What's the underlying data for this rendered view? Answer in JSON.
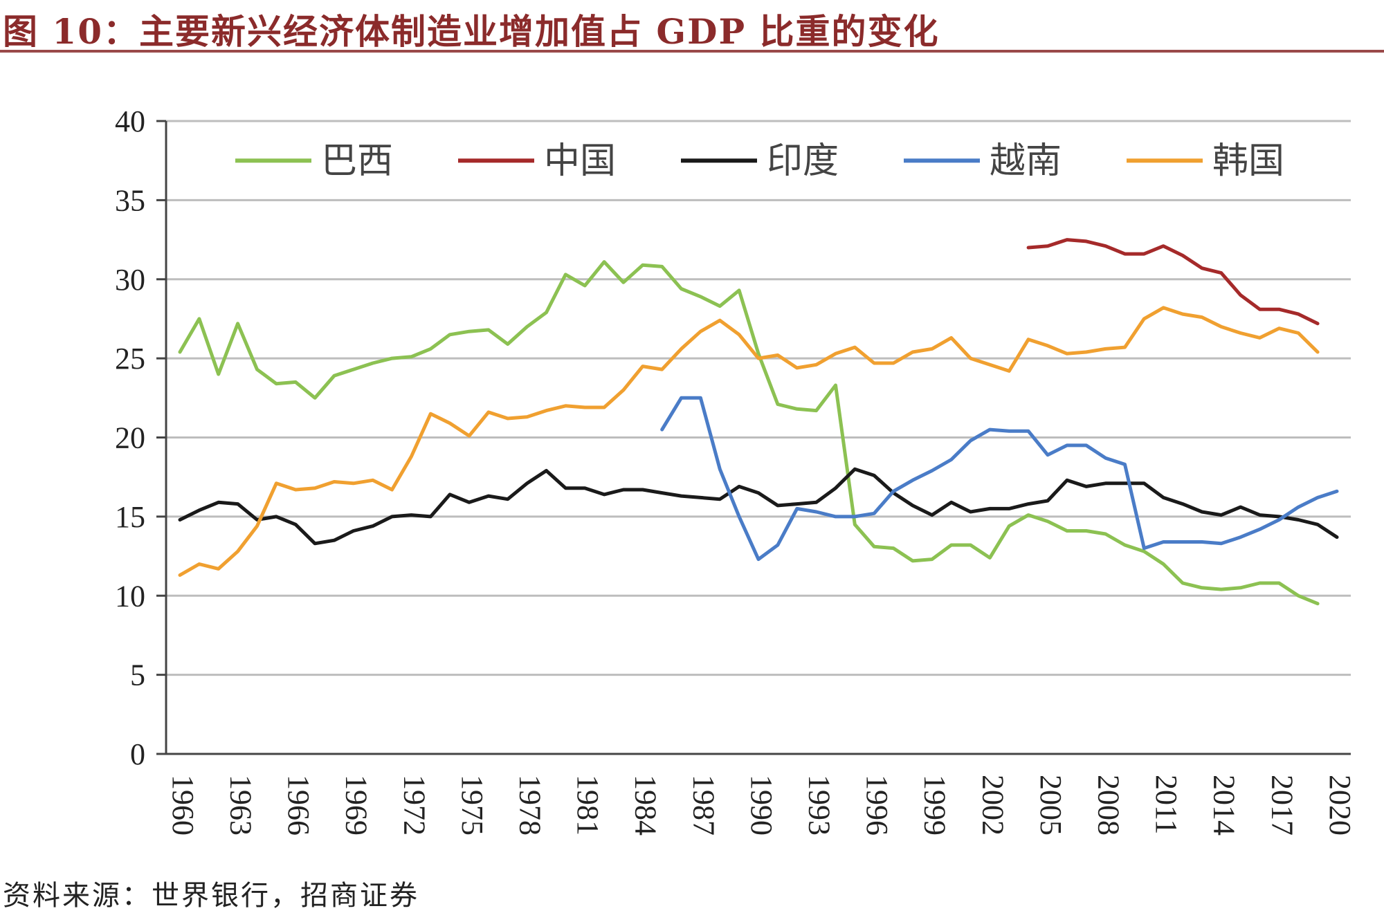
{
  "title": "图 10：主要新兴经济体制造业增加值占 GDP 比重的变化",
  "source": "资料来源：世界银行，招商证券",
  "chart_data": {
    "type": "line",
    "title": "图 10：主要新兴经济体制造业增加值占 GDP 比重的变化",
    "xlabel": "",
    "ylabel": "",
    "ylim": [
      0,
      40
    ],
    "yticks": [
      "0",
      "5",
      "10",
      "15",
      "20",
      "25",
      "30",
      "35",
      "40"
    ],
    "xlim": [
      1960,
      2020
    ],
    "xticks": [
      "1960",
      "1963",
      "1966",
      "1969",
      "1972",
      "1975",
      "1978",
      "1981",
      "1984",
      "1987",
      "1990",
      "1993",
      "1996",
      "1999",
      "2002",
      "2005",
      "2008",
      "2011",
      "2014",
      "2017",
      "2020"
    ],
    "grid": true,
    "legend_position": "top",
    "series": [
      {
        "name": "巴西",
        "color": "#8cc152",
        "x": [
          1960,
          1961,
          1962,
          1963,
          1964,
          1965,
          1966,
          1967,
          1968,
          1969,
          1970,
          1971,
          1972,
          1973,
          1974,
          1975,
          1976,
          1977,
          1978,
          1979,
          1980,
          1981,
          1982,
          1983,
          1984,
          1985,
          1986,
          1987,
          1988,
          1989,
          1990,
          1991,
          1992,
          1993,
          1994,
          1995,
          1996,
          1997,
          1998,
          1999,
          2000,
          2001,
          2002,
          2003,
          2004,
          2005,
          2006,
          2007,
          2008,
          2009,
          2010,
          2011,
          2012,
          2013,
          2014,
          2015,
          2016,
          2017,
          2018,
          2019,
          2020
        ],
        "y": [
          25.4,
          27.5,
          24.0,
          27.2,
          24.3,
          23.4,
          23.5,
          22.5,
          23.9,
          24.3,
          24.7,
          25.0,
          25.1,
          25.6,
          26.5,
          26.7,
          26.8,
          25.9,
          27.0,
          27.9,
          30.3,
          29.6,
          31.1,
          29.8,
          30.9,
          30.8,
          29.4,
          28.9,
          28.3,
          29.3,
          25.3,
          22.1,
          21.8,
          21.7,
          23.3,
          14.5,
          13.1,
          13.0,
          12.2,
          12.3,
          13.2,
          13.2,
          12.4,
          14.4,
          15.1,
          14.7,
          14.1,
          14.1,
          13.9,
          13.2,
          12.8,
          12.0,
          10.8,
          10.5,
          10.4,
          10.5,
          10.8,
          10.8,
          10.0,
          9.5,
          null
        ]
      },
      {
        "name": "中国",
        "color": "#a52a2a",
        "x": [
          2004,
          2005,
          2006,
          2007,
          2008,
          2009,
          2010,
          2011,
          2012,
          2013,
          2014,
          2015,
          2016,
          2017,
          2018,
          2019,
          2020
        ],
        "y": [
          32.0,
          32.1,
          32.5,
          32.4,
          32.1,
          31.6,
          31.6,
          32.1,
          31.5,
          30.7,
          30.4,
          29.0,
          28.1,
          28.1,
          27.8,
          27.2,
          null
        ]
      },
      {
        "name": "印度",
        "color": "#1a1a1a",
        "x": [
          1960,
          1961,
          1962,
          1963,
          1964,
          1965,
          1966,
          1967,
          1968,
          1969,
          1970,
          1971,
          1972,
          1973,
          1974,
          1975,
          1976,
          1977,
          1978,
          1979,
          1980,
          1981,
          1982,
          1983,
          1984,
          1985,
          1986,
          1987,
          1988,
          1989,
          1990,
          1991,
          1992,
          1993,
          1994,
          1995,
          1996,
          1997,
          1998,
          1999,
          2000,
          2001,
          2002,
          2003,
          2004,
          2005,
          2006,
          2007,
          2008,
          2009,
          2010,
          2011,
          2012,
          2013,
          2014,
          2015,
          2016,
          2017,
          2018,
          2019,
          2020
        ],
        "y": [
          14.8,
          15.4,
          15.9,
          15.8,
          14.8,
          15.0,
          14.5,
          13.3,
          13.5,
          14.1,
          14.4,
          15.0,
          15.1,
          15.0,
          16.4,
          15.9,
          16.3,
          16.1,
          17.1,
          17.9,
          16.8,
          16.8,
          16.4,
          16.7,
          16.7,
          16.5,
          16.3,
          16.2,
          16.1,
          16.9,
          16.5,
          15.7,
          15.8,
          15.9,
          16.8,
          18.0,
          17.6,
          16.5,
          15.7,
          15.1,
          15.9,
          15.3,
          15.5,
          15.5,
          15.8,
          16.0,
          17.3,
          16.9,
          17.1,
          17.1,
          17.1,
          16.2,
          15.8,
          15.3,
          15.1,
          15.6,
          15.1,
          15.0,
          14.8,
          14.5,
          13.7
        ]
      },
      {
        "name": "越南",
        "color": "#4a7cc7",
        "x": [
          1985,
          1986,
          1987,
          1988,
          1989,
          1990,
          1991,
          1992,
          1993,
          1994,
          1995,
          1996,
          1997,
          1998,
          1999,
          2000,
          2001,
          2002,
          2003,
          2004,
          2005,
          2006,
          2007,
          2008,
          2009,
          2010,
          2011,
          2012,
          2013,
          2014,
          2015,
          2016,
          2017,
          2018,
          2019,
          2020
        ],
        "y": [
          20.5,
          22.5,
          22.5,
          18.0,
          15.0,
          12.3,
          13.2,
          15.5,
          15.3,
          15.0,
          15.0,
          15.2,
          16.6,
          17.3,
          17.9,
          18.6,
          19.8,
          20.5,
          20.4,
          20.4,
          18.9,
          19.5,
          19.5,
          18.7,
          18.3,
          13.0,
          13.4,
          13.4,
          13.4,
          13.3,
          13.7,
          14.2,
          14.8,
          15.6,
          16.2,
          16.6
        ]
      },
      {
        "name": "韩国",
        "color": "#f0a030",
        "x": [
          1960,
          1961,
          1962,
          1963,
          1964,
          1965,
          1966,
          1967,
          1968,
          1969,
          1970,
          1971,
          1972,
          1973,
          1974,
          1975,
          1976,
          1977,
          1978,
          1979,
          1980,
          1981,
          1982,
          1983,
          1984,
          1985,
          1986,
          1987,
          1988,
          1989,
          1990,
          1991,
          1992,
          1993,
          1994,
          1995,
          1996,
          1997,
          1998,
          1999,
          2000,
          2001,
          2002,
          2003,
          2004,
          2005,
          2006,
          2007,
          2008,
          2009,
          2010,
          2011,
          2012,
          2013,
          2014,
          2015,
          2016,
          2017,
          2018,
          2019,
          2020
        ],
        "y": [
          11.3,
          12.0,
          11.7,
          12.8,
          14.4,
          17.1,
          16.7,
          16.8,
          17.2,
          17.1,
          17.3,
          16.7,
          18.8,
          21.5,
          20.9,
          20.1,
          21.6,
          21.2,
          21.3,
          21.7,
          22.0,
          21.9,
          21.9,
          23.0,
          24.5,
          24.3,
          25.6,
          26.7,
          27.4,
          26.5,
          25.0,
          25.2,
          24.4,
          24.6,
          25.3,
          25.7,
          24.7,
          24.7,
          25.4,
          25.6,
          26.3,
          25.0,
          24.6,
          24.2,
          26.2,
          25.8,
          25.3,
          25.4,
          25.6,
          25.7,
          27.5,
          28.2,
          27.8,
          27.6,
          27.0,
          26.6,
          26.3,
          26.9,
          26.6,
          25.4,
          null
        ]
      }
    ]
  }
}
